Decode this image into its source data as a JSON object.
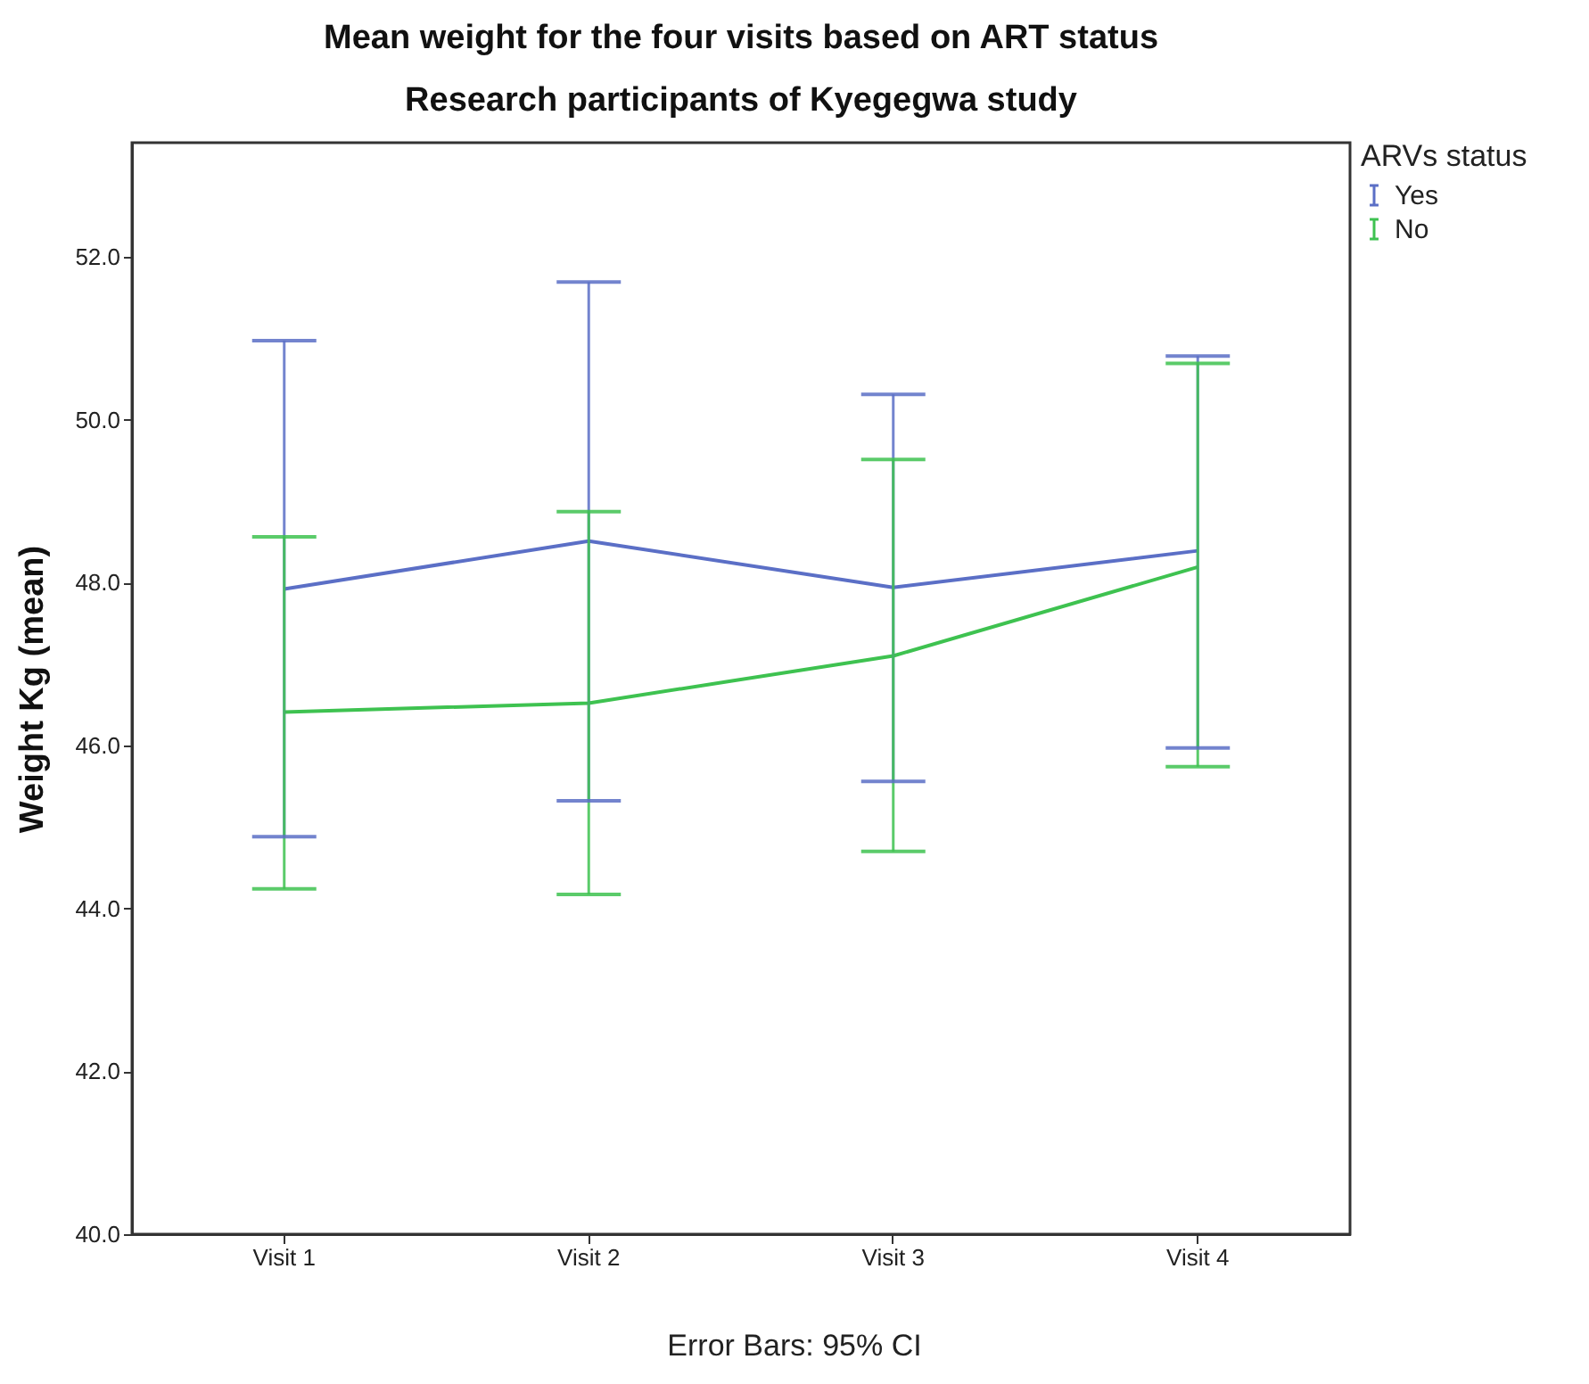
{
  "chart_data": {
    "type": "line",
    "title": "Mean weight for the four visits based on ART status",
    "subtitle": "Research participants of Kyegegwa study",
    "ylabel": "Weight Kg (mean)",
    "legend_title": "ARVs status",
    "legend": "top right",
    "categories": [
      "Visit 1",
      "Visit 2",
      "Visit 3",
      "Visit 4"
    ],
    "series": [
      {
        "name": "Yes",
        "color": "#5b6fc6",
        "values": [
          47.92,
          48.51,
          47.94,
          48.39
        ],
        "errors": [
          [
            44.88,
            50.97
          ],
          [
            45.32,
            51.69
          ],
          [
            45.56,
            50.31
          ],
          [
            45.97,
            50.78
          ]
        ]
      },
      {
        "name": "No",
        "color": "#3ec250",
        "values": [
          46.41,
          46.52,
          47.1,
          48.19
        ],
        "errors": [
          [
            44.24,
            48.56
          ],
          [
            44.17,
            48.87
          ],
          [
            44.7,
            49.51
          ],
          [
            45.74,
            50.69
          ]
        ]
      }
    ],
    "ylim": [
      40,
      53.4
    ],
    "yticks": [
      {
        "value": 40,
        "label": "40.0"
      },
      {
        "value": 42,
        "label": "42.0"
      },
      {
        "value": 44,
        "label": "44.0"
      },
      {
        "value": 46,
        "label": "46.0"
      },
      {
        "value": 48,
        "label": "48.0"
      },
      {
        "value": 50,
        "label": "50.0"
      },
      {
        "value": 52,
        "label": "52.0"
      }
    ],
    "annotations": [
      "Error Bars: 95% CI"
    ]
  }
}
